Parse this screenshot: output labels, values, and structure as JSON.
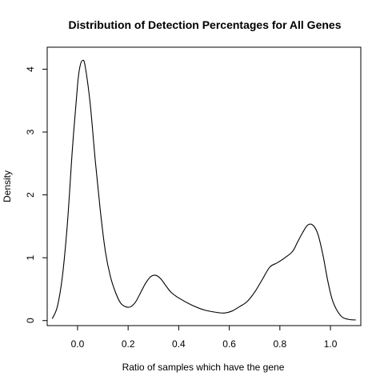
{
  "chart_data": {
    "type": "line",
    "title": "Distribution of Detection Percentages for All Genes",
    "xlabel": "Ratio of samples which have the gene",
    "ylabel": "Density",
    "xlim": [
      -0.12,
      1.12
    ],
    "ylim": [
      -0.08,
      4.35
    ],
    "x_ticks": [
      0.0,
      0.2,
      0.4,
      0.6,
      0.8,
      1.0
    ],
    "x_tick_labels": [
      "0.0",
      "0.2",
      "0.4",
      "0.6",
      "0.8",
      "1.0"
    ],
    "y_ticks": [
      0,
      1,
      2,
      3,
      4
    ],
    "y_tick_labels": [
      "0",
      "1",
      "2",
      "3",
      "4"
    ],
    "grid": false,
    "legend": "none",
    "line_color": "#000000",
    "series": [
      {
        "x": [
          -0.1,
          -0.08,
          -0.06,
          -0.04,
          -0.02,
          0.0,
          0.01,
          0.02,
          0.03,
          0.05,
          0.07,
          0.09,
          0.11,
          0.13,
          0.15,
          0.17,
          0.19,
          0.21,
          0.23,
          0.25,
          0.27,
          0.29,
          0.31,
          0.33,
          0.35,
          0.37,
          0.4,
          0.45,
          0.5,
          0.55,
          0.58,
          0.61,
          0.64,
          0.67,
          0.7,
          0.73,
          0.76,
          0.79,
          0.82,
          0.85,
          0.87,
          0.89,
          0.91,
          0.93,
          0.95,
          0.97,
          0.99,
          1.01,
          1.04,
          1.07,
          1.1
        ],
        "y": [
          0.03,
          0.22,
          0.7,
          1.55,
          2.75,
          3.75,
          4.05,
          4.14,
          4.05,
          3.45,
          2.55,
          1.75,
          1.1,
          0.7,
          0.45,
          0.28,
          0.22,
          0.22,
          0.3,
          0.45,
          0.6,
          0.7,
          0.72,
          0.66,
          0.55,
          0.45,
          0.36,
          0.25,
          0.17,
          0.13,
          0.12,
          0.15,
          0.22,
          0.3,
          0.45,
          0.65,
          0.85,
          0.92,
          1.0,
          1.1,
          1.25,
          1.4,
          1.52,
          1.52,
          1.38,
          1.05,
          0.62,
          0.3,
          0.08,
          0.02,
          0.01
        ]
      }
    ]
  }
}
